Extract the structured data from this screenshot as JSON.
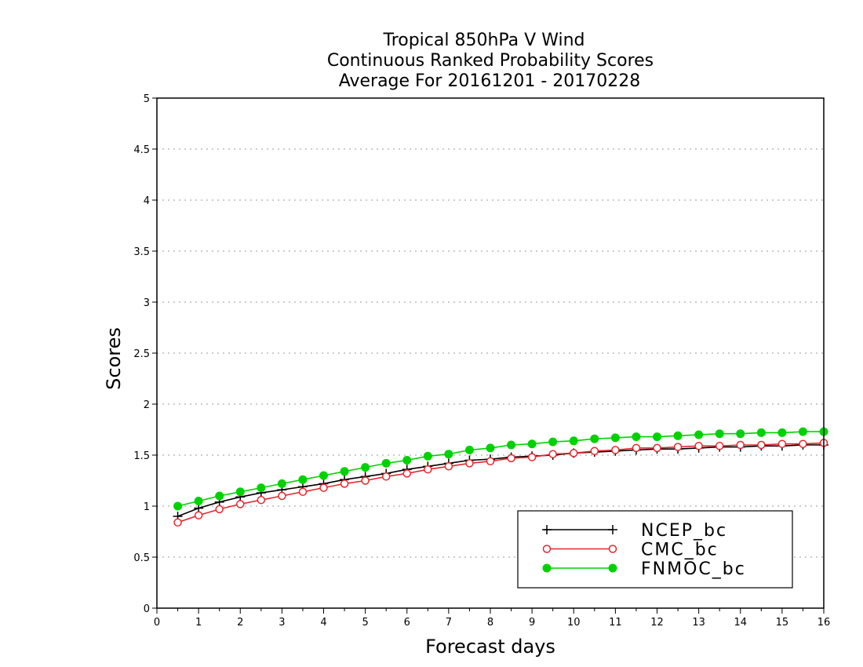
{
  "chart_data": {
    "type": "line",
    "title": [
      "Tropical 850hPa V Wind",
      "Continuous Ranked Probability Scores",
      "Average For 20161201 - 20170228"
    ],
    "xlabel": "Forecast days",
    "ylabel": "Scores",
    "xlim": [
      0,
      16
    ],
    "ylim": [
      0,
      5
    ],
    "xticks": [
      "0",
      "1",
      "2",
      "3",
      "4",
      "5",
      "6",
      "7",
      "8",
      "9",
      "10",
      "11",
      "12",
      "13",
      "14",
      "15",
      "16"
    ],
    "yticks": [
      "0",
      "0.5",
      "1",
      "1.5",
      "2",
      "2.5",
      "3",
      "3.5",
      "4",
      "4.5",
      "5"
    ],
    "grid": true,
    "legend_position": "bottom-right",
    "x": [
      0.5,
      1,
      1.5,
      2,
      2.5,
      3,
      3.5,
      4,
      4.5,
      5,
      5.5,
      6,
      6.5,
      7,
      7.5,
      8,
      8.5,
      9,
      9.5,
      10,
      10.5,
      11,
      11.5,
      12,
      12.5,
      13,
      13.5,
      14,
      14.5,
      15,
      15.5,
      16
    ],
    "series": [
      {
        "name": "NCEP_bc",
        "color": "#000000",
        "marker": "plus",
        "values": [
          0.9,
          0.98,
          1.04,
          1.09,
          1.13,
          1.16,
          1.19,
          1.22,
          1.26,
          1.29,
          1.32,
          1.36,
          1.39,
          1.42,
          1.45,
          1.46,
          1.48,
          1.49,
          1.5,
          1.52,
          1.53,
          1.54,
          1.55,
          1.56,
          1.56,
          1.57,
          1.58,
          1.58,
          1.59,
          1.59,
          1.6,
          1.6
        ]
      },
      {
        "name": "CMC_bc",
        "color": "#e8262c",
        "marker": "open-circle",
        "values": [
          0.84,
          0.91,
          0.97,
          1.02,
          1.06,
          1.1,
          1.14,
          1.18,
          1.22,
          1.25,
          1.29,
          1.32,
          1.36,
          1.39,
          1.42,
          1.44,
          1.47,
          1.48,
          1.51,
          1.52,
          1.54,
          1.55,
          1.57,
          1.57,
          1.58,
          1.59,
          1.59,
          1.6,
          1.6,
          1.61,
          1.61,
          1.62
        ]
      },
      {
        "name": "FNMOC_bc",
        "color": "#00d200",
        "marker": "filled-circle",
        "values": [
          1.0,
          1.05,
          1.1,
          1.14,
          1.18,
          1.22,
          1.26,
          1.3,
          1.34,
          1.38,
          1.42,
          1.45,
          1.49,
          1.51,
          1.55,
          1.57,
          1.6,
          1.61,
          1.63,
          1.64,
          1.66,
          1.67,
          1.68,
          1.68,
          1.69,
          1.7,
          1.71,
          1.71,
          1.72,
          1.72,
          1.73,
          1.73
        ]
      }
    ]
  }
}
